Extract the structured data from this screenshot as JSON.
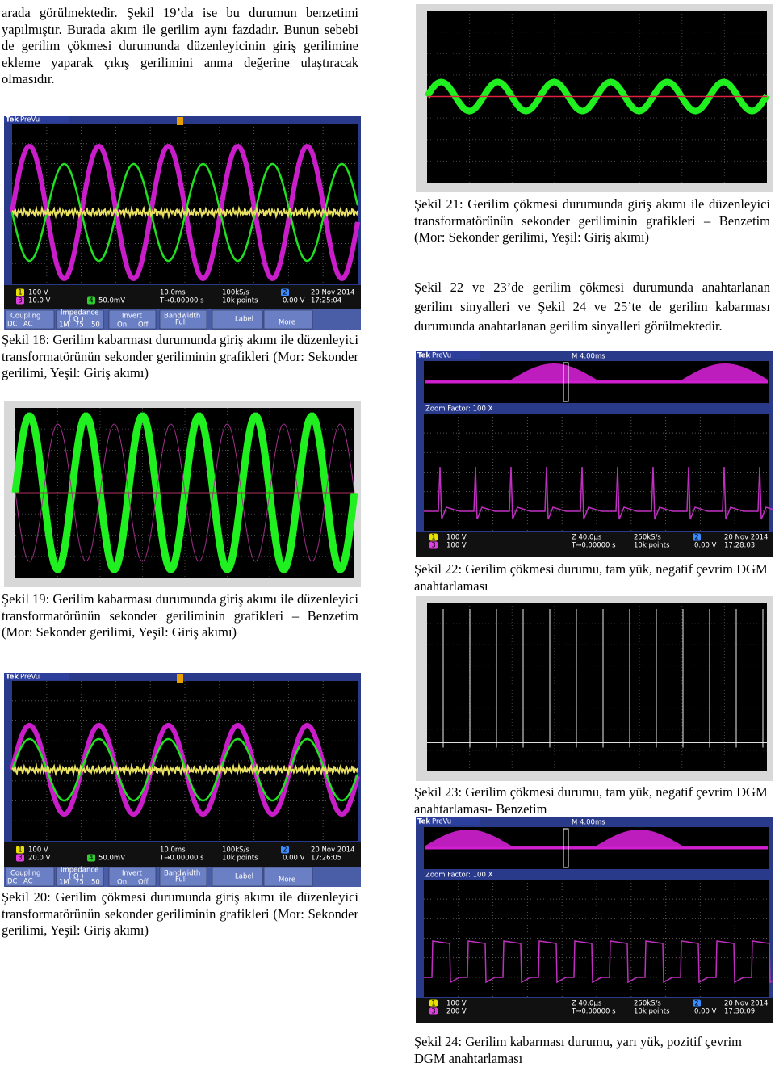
{
  "intro": "arada görülmektedir. Şekil 19’da ise bu durumun benzetimi yapılmıştır. Burada akım ile gerilim aynı fazdadır. Bunun sebebi de gerilim çökmesi durumunda düzenleyicinin giriş gerilimine ekleme yaparak çıkış gerilimini anma değerine ulaştıracak olmasıdır.",
  "paragraph": "Şekil 22 ve 23’de gerilim çökmesi durumunda anahtarlanan gerilim sinyalleri ve Şekil 24 ve 25’te de gerilim kabarması durumunda anahtarlanan gerilim sinyalleri görülmektedir.",
  "fig18": {
    "caption": "Şekil 18: Gerilim kabarması durumunda giriş akımı ile düzenleyici transformatörünün sekonder geriliminin grafikleri (Mor: Sekonder gerilimi, Yeşil: Giriş akımı)",
    "brand": "Tek",
    "mode": "PreVu",
    "badges": [
      "1",
      "3",
      "4",
      "2"
    ],
    "readouts": [
      "100 V",
      "10.0 V",
      "50.0mV",
      "10.0ms",
      "100kS/s",
      "T→0.00000 s",
      "10k points",
      "0.00 V",
      "20 Nov 2014",
      "17:25:04"
    ],
    "menu": [
      "Coupling",
      "DC",
      "AC",
      "Impedance",
      "( Ω )",
      "1M",
      "75",
      "50",
      "Invert",
      "On",
      "Off",
      "Bandwidth",
      "Full",
      "Label",
      "More"
    ]
  },
  "fig19": {
    "caption": "Şekil 19: Gerilim kabarması durumunda giriş akımı ile düzenleyici transformatörünün sekonder geriliminin grafikleri – Benzetim (Mor: Sekonder gerilimi, Yeşil: Giriş akımı)"
  },
  "fig20": {
    "caption": "Şekil 20: Gerilim çökmesi durumunda giriş akımı ile düzenleyici transformatörünün sekonder geriliminin grafikleri (Mor: Sekonder gerilimi, Yeşil: Giriş akımı)",
    "brand": "Tek",
    "mode": "PreVu",
    "badges": [
      "1",
      "3",
      "4",
      "2"
    ],
    "readouts": [
      "100 V",
      "20.0 V",
      "50.0mV",
      "10.0ms",
      "100kS/s",
      "T→0.00000 s",
      "10k points",
      "0.00 V",
      "20 Nov 2014",
      "17:26:05"
    ],
    "menu": [
      "Coupling",
      "DC",
      "AC",
      "Impedance",
      "( Ω )",
      "1M",
      "75",
      "50",
      "Invert",
      "On",
      "Off",
      "Bandwidth",
      "Full",
      "Label",
      "More"
    ]
  },
  "fig21": {
    "caption": "Şekil 21: Gerilim çökmesi durumunda giriş akımı ile düzenleyici transformatörünün sekonder geriliminin grafikleri – Benzetim (Mor: Sekonder gerilimi, Yeşil: Giriş akımı)"
  },
  "fig22": {
    "caption": "Şekil 22: Gerilim çökmesi durumu, tam yük, negatif çevrim DGM anahtarlaması",
    "brand": "Tek",
    "mode": "PreVu",
    "timebase": "M 4.00ms",
    "zoom": "Zoom Factor: 100 X",
    "badges": [
      "1",
      "3",
      "2"
    ],
    "readouts": [
      "100 V",
      "100 V",
      "Z 40.0µs",
      "250kS/s",
      "T→0.00000 s",
      "10k points",
      "0.00 V",
      "20 Nov 2014",
      "17:28:03"
    ]
  },
  "fig23": {
    "caption": "Şekil 23: Gerilim çökmesi durumu, tam yük, negatif çevrim DGM anahtarlaması- Benzetim"
  },
  "fig24": {
    "caption": "Şekil 24: Gerilim kabarması durumu, yarı yük, pozitif çevrim DGM anahtarlaması",
    "brand": "Tek",
    "mode": "PreVu",
    "timebase": "M 4.00ms",
    "zoom": "Zoom Factor: 100 X",
    "badges": [
      "1",
      "3",
      "2"
    ],
    "readouts": [
      "100 V",
      "200 V",
      "Z 40.0µs",
      "250kS/s",
      "T→0.00000 s",
      "10k points",
      "0.00 V",
      "20 Nov 2014",
      "17:30:09"
    ]
  }
}
